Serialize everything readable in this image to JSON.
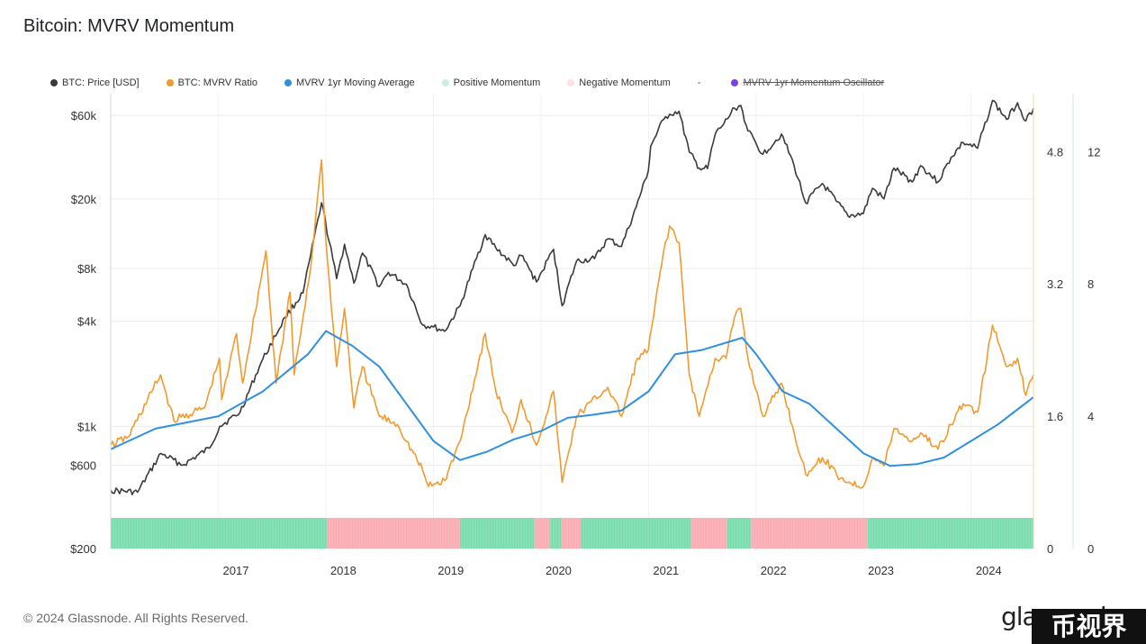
{
  "title": "Bitcoin: MVRV Momentum",
  "footer": "© 2024 Glassnode. All Rights Reserved.",
  "brand": "glassnode",
  "watermark": "币视界",
  "legend": [
    {
      "label": "BTC: Price [USD]",
      "color": "#3a3a3a",
      "struck": false
    },
    {
      "label": "BTC: MVRV Ratio",
      "color": "#f29a2e",
      "struck": false
    },
    {
      "label": "MVRV 1yr Moving Average",
      "color": "#2f8fe0",
      "struck": false
    },
    {
      "label": "Positive Momentum",
      "color": "#c9f0dc",
      "struck": false
    },
    {
      "label": "Negative Momentum",
      "color": "#fde1e4",
      "struck": false
    },
    {
      "label": "-",
      "color": "",
      "struck": false
    },
    {
      "label": "MVRV 1yr Momentum Oscillator",
      "color": "#7b3fe4",
      "struck": true
    }
  ],
  "chart_data": {
    "type": "line",
    "x_range": [
      "2016-01-01",
      "2024-07-31"
    ],
    "x_ticks": [
      "2017",
      "2018",
      "2019",
      "2020",
      "2021",
      "2022",
      "2023",
      "2024"
    ],
    "left_axis": {
      "scale": "log",
      "range": [
        200,
        80000
      ],
      "ticks": [
        "$60k",
        "$20k",
        "$8k",
        "$4k",
        "$1k",
        "$600",
        "$200"
      ],
      "tick_values": [
        60000,
        20000,
        8000,
        4000,
        1000,
        600,
        200
      ]
    },
    "right_axis_1": {
      "range": [
        0,
        5.5
      ],
      "ticks": [
        "4.8",
        "3.2",
        "1.6",
        "0"
      ],
      "tick_values": [
        4.8,
        3.2,
        1.6,
        0
      ]
    },
    "right_axis_2": {
      "range": [
        0,
        13.75
      ],
      "ticks": [
        "12",
        "8",
        "4",
        "0"
      ],
      "tick_values": [
        12,
        8,
        4,
        0
      ]
    },
    "series": [
      {
        "name": "BTC: Price [USD]",
        "axis": "left",
        "color": "#3a3a3a",
        "x": [
          "2016-01-01",
          "2016-04-01",
          "2016-06-20",
          "2016-09-01",
          "2016-12-01",
          "2017-01-05",
          "2017-03-15",
          "2017-05-25",
          "2017-08-15",
          "2017-10-15",
          "2017-12-17",
          "2018-02-06",
          "2018-03-05",
          "2018-04-06",
          "2018-05-05",
          "2018-07-01",
          "2018-08-01",
          "2018-10-01",
          "2018-11-25",
          "2019-01-01",
          "2019-02-08",
          "2019-04-02",
          "2019-05-15",
          "2019-06-26",
          "2019-08-01",
          "2019-10-01",
          "2019-10-26",
          "2019-12-17",
          "2020-02-13",
          "2020-03-13",
          "2020-05-01",
          "2020-07-01",
          "2020-08-15",
          "2020-10-01",
          "2020-11-20",
          "2020-12-31",
          "2021-01-08",
          "2021-02-21",
          "2021-03-13",
          "2021-04-14",
          "2021-05-19",
          "2021-06-22",
          "2021-07-20",
          "2021-08-15",
          "2021-09-07",
          "2021-10-20",
          "2021-11-10",
          "2021-12-04",
          "2022-01-24",
          "2022-03-28",
          "2022-05-10",
          "2022-06-18",
          "2022-08-14",
          "2022-09-30",
          "2022-11-09",
          "2022-12-31",
          "2023-01-31",
          "2023-03-11",
          "2023-04-14",
          "2023-06-15",
          "2023-07-14",
          "2023-09-11",
          "2023-10-25",
          "2023-12-05",
          "2024-01-23",
          "2024-03-14",
          "2024-05-01",
          "2024-06-07",
          "2024-07-05",
          "2024-07-31"
        ],
        "y": [
          430,
          420,
          700,
          600,
          750,
          1000,
          1200,
          2300,
          4200,
          5800,
          19000,
          7000,
          11000,
          6600,
          9800,
          6300,
          7600,
          6500,
          3800,
          3700,
          3500,
          4900,
          8000,
          12500,
          10500,
          8300,
          9500,
          6700,
          10300,
          4900,
          8800,
          9100,
          11800,
          10700,
          18000,
          29000,
          40000,
          57000,
          61000,
          63500,
          37000,
          30000,
          29800,
          47000,
          52000,
          66000,
          68500,
          49000,
          36000,
          47000,
          31000,
          19000,
          24500,
          19400,
          16000,
          16500,
          23000,
          20000,
          30000,
          25000,
          31000,
          25000,
          34500,
          42000,
          39000,
          73000,
          57000,
          71000,
          56000,
          66000
        ]
      },
      {
        "name": "BTC: MVRV Ratio",
        "axis": "right1",
        "color": "#f29a2e",
        "x": [
          "2016-01-01",
          "2016-03-01",
          "2016-06-18",
          "2016-08-02",
          "2016-11-15",
          "2017-01-04",
          "2017-01-12",
          "2017-03-03",
          "2017-03-24",
          "2017-06-11",
          "2017-07-16",
          "2017-09-01",
          "2017-09-15",
          "2017-11-10",
          "2017-12-17",
          "2018-01-01",
          "2018-02-06",
          "2018-03-05",
          "2018-04-06",
          "2018-05-05",
          "2018-07-01",
          "2018-09-01",
          "2018-11-25",
          "2018-12-15",
          "2019-02-08",
          "2019-04-02",
          "2019-06-26",
          "2019-08-01",
          "2019-09-25",
          "2019-10-26",
          "2019-12-17",
          "2020-02-13",
          "2020-03-13",
          "2020-05-01",
          "2020-08-15",
          "2020-10-01",
          "2020-11-24",
          "2020-12-31",
          "2021-02-21",
          "2021-03-13",
          "2021-04-14",
          "2021-05-19",
          "2021-06-22",
          "2021-08-15",
          "2021-09-21",
          "2021-10-20",
          "2021-11-10",
          "2021-12-04",
          "2022-01-24",
          "2022-03-28",
          "2022-05-10",
          "2022-06-18",
          "2022-08-14",
          "2022-10-15",
          "2022-11-09",
          "2022-12-31",
          "2023-01-31",
          "2023-03-11",
          "2023-04-14",
          "2023-06-15",
          "2023-07-14",
          "2023-09-11",
          "2023-10-25",
          "2023-12-05",
          "2024-01-23",
          "2024-03-14",
          "2024-04-01",
          "2024-05-01",
          "2024-06-07",
          "2024-07-05",
          "2024-07-31"
        ],
        "y": [
          1.25,
          1.35,
          2.1,
          1.55,
          1.7,
          2.3,
          1.8,
          2.6,
          2.0,
          3.6,
          2.0,
          3.1,
          2.1,
          3.4,
          4.7,
          3.7,
          2.2,
          2.9,
          1.7,
          2.2,
          1.6,
          1.5,
          0.95,
          0.75,
          0.82,
          1.3,
          2.6,
          1.9,
          1.4,
          1.8,
          1.25,
          1.9,
          0.8,
          1.6,
          1.95,
          1.6,
          2.3,
          2.4,
          3.6,
          3.9,
          3.7,
          2.1,
          1.6,
          2.3,
          2.3,
          2.8,
          2.9,
          2.3,
          1.6,
          2.0,
          1.4,
          0.9,
          1.1,
          0.85,
          0.8,
          0.75,
          1.1,
          1.0,
          1.45,
          1.3,
          1.4,
          1.2,
          1.5,
          1.75,
          1.65,
          2.7,
          2.5,
          2.2,
          2.3,
          1.85,
          2.1
        ]
      },
      {
        "name": "MVRV 1yr Moving Average",
        "axis": "right1",
        "color": "#2f8fe0",
        "x": [
          "2016-01-01",
          "2016-06-01",
          "2017-01-01",
          "2017-06-01",
          "2017-11-01",
          "2018-01-01",
          "2018-04-01",
          "2018-07-01",
          "2018-10-01",
          "2019-01-01",
          "2019-04-01",
          "2019-07-01",
          "2019-10-01",
          "2020-01-01",
          "2020-04-01",
          "2020-07-01",
          "2020-10-01",
          "2021-01-01",
          "2021-04-01",
          "2021-07-01",
          "2021-10-01",
          "2021-11-15",
          "2022-01-01",
          "2022-04-01",
          "2022-07-01",
          "2022-10-01",
          "2023-01-01",
          "2023-04-01",
          "2023-07-01",
          "2023-10-01",
          "2024-01-01",
          "2024-04-01",
          "2024-07-31"
        ],
        "y": [
          1.2,
          1.45,
          1.6,
          1.9,
          2.35,
          2.63,
          2.45,
          2.2,
          1.75,
          1.3,
          1.07,
          1.17,
          1.32,
          1.42,
          1.58,
          1.62,
          1.67,
          1.9,
          2.35,
          2.4,
          2.5,
          2.55,
          2.35,
          1.9,
          1.75,
          1.45,
          1.15,
          1.0,
          1.02,
          1.1,
          1.3,
          1.5,
          1.83
        ]
      }
    ],
    "momentum_bars": [
      {
        "from": "2016-01-01",
        "to": "2018-01-05",
        "state": "positive"
      },
      {
        "from": "2018-01-05",
        "to": "2019-04-01",
        "state": "negative"
      },
      {
        "from": "2019-04-01",
        "to": "2019-12-10",
        "state": "positive"
      },
      {
        "from": "2019-12-10",
        "to": "2020-01-31",
        "state": "negative"
      },
      {
        "from": "2020-01-31",
        "to": "2020-03-10",
        "state": "positive"
      },
      {
        "from": "2020-03-10",
        "to": "2020-05-15",
        "state": "negative"
      },
      {
        "from": "2020-05-15",
        "to": "2021-05-25",
        "state": "positive"
      },
      {
        "from": "2021-05-25",
        "to": "2021-09-25",
        "state": "negative"
      },
      {
        "from": "2021-09-25",
        "to": "2021-12-15",
        "state": "positive"
      },
      {
        "from": "2021-12-15",
        "to": "2023-01-15",
        "state": "negative"
      },
      {
        "from": "2023-01-15",
        "to": "2024-07-31",
        "state": "positive"
      }
    ],
    "grid": true
  }
}
